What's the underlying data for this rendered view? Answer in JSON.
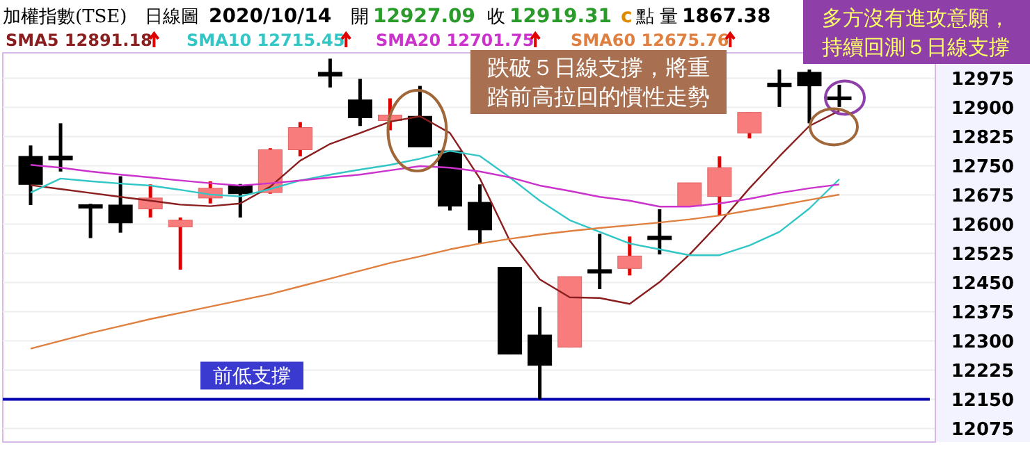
{
  "chart_data": {
    "type": "candlestick",
    "title": "加權指數(TSE)",
    "categories": [
      null,
      null,
      null,
      null,
      null,
      null,
      null,
      null,
      null,
      null,
      null,
      null,
      null,
      null,
      null,
      null,
      null,
      null,
      null,
      null,
      null,
      null,
      null,
      null,
      null,
      null,
      null,
      null
    ],
    "ohlc": [
      [
        12774,
        12802,
        12649,
        12702
      ],
      [
        12775,
        12859,
        12735,
        12765
      ],
      [
        12650,
        12652,
        12564,
        12641
      ],
      [
        12649,
        12723,
        12578,
        12603
      ],
      [
        12639,
        12702,
        12617,
        12667
      ],
      [
        12593,
        12617,
        12483,
        12610
      ],
      [
        12667,
        12710,
        12653,
        12692
      ],
      [
        12699,
        12703,
        12617,
        12678
      ],
      [
        12681,
        12795,
        12678,
        12791
      ],
      [
        12791,
        12862,
        12774,
        12848
      ],
      [
        12990,
        13025,
        12951,
        12980
      ],
      [
        12919,
        12973,
        12852,
        12873
      ],
      [
        12866,
        12923,
        12841,
        12880
      ],
      [
        12877,
        12955,
        12798,
        12798
      ],
      [
        12788,
        12788,
        12635,
        12646
      ],
      [
        12656,
        12702,
        12550,
        12585
      ],
      [
        12489,
        12489,
        12266,
        12266
      ],
      [
        12315,
        12387,
        12150,
        12237
      ],
      [
        12284,
        12465,
        12284,
        12465
      ],
      [
        12483,
        12575,
        12433,
        12474
      ],
      [
        12486,
        12568,
        12468,
        12518
      ],
      [
        12569,
        12638,
        12522,
        12560
      ],
      [
        12646,
        12706,
        12646,
        12706
      ],
      [
        12671,
        12774,
        12621,
        12745
      ],
      [
        12834,
        12887,
        12820,
        12887
      ],
      [
        12962,
        12997,
        12901,
        12953
      ],
      [
        12990,
        12997,
        12859,
        12955
      ],
      [
        12927.09,
        12958,
        12901,
        12919.31
      ]
    ],
    "series": [
      {
        "name": "SMA5 12891.18",
        "type": "line",
        "color": "#8b1e1e",
        "values": [
          12700,
          12690,
          12680,
          12670,
          12660,
          12650,
          12646,
          12653,
          12696,
          12763,
          12806,
          12834,
          12863,
          12877,
          12834,
          12717,
          12557,
          12458,
          12412,
          12410,
          12395,
          12451,
          12522,
          12603,
          12692,
          12774,
          12852,
          12891.18
        ]
      },
      {
        "name": "SMA10 12715.45",
        "type": "line",
        "color": "#33c6c6",
        "values": [
          12681,
          12717,
          12710,
          12704,
          12699,
          12688,
          12676,
          12671,
          12690,
          12712,
          12727,
          12740,
          12752,
          12768,
          12788,
          12775,
          12720,
          12660,
          12610,
          12580,
          12550,
          12535,
          12520,
          12520,
          12545,
          12580,
          12640,
          12715.45
        ]
      },
      {
        "name": "SMA20 12701.75",
        "type": "line",
        "color": "#cc33cc",
        "values": [
          12752,
          12745,
          12735,
          12727,
          12720,
          12712,
          12705,
          12699,
          12705,
          12712,
          12720,
          12727,
          12738,
          12749,
          12745,
          12735,
          12720,
          12699,
          12685,
          12670,
          12660,
          12645,
          12645,
          12653,
          12665,
          12680,
          12692,
          12701.75
        ]
      },
      {
        "name": "SMA60 12675.76",
        "type": "line",
        "color": "#e08040",
        "values": [
          12280,
          12300,
          12320,
          12338,
          12356,
          12372,
          12388,
          12404,
          12420,
          12440,
          12460,
          12480,
          12500,
          12517,
          12535,
          12550,
          12562,
          12573,
          12582,
          12590,
          12597,
          12604,
          12612,
          12622,
          12635,
          12648,
          12662,
          12675.76
        ]
      }
    ],
    "ylim": [
      12040,
      13040
    ],
    "yticks": [
      12075,
      12150,
      12225,
      12300,
      12375,
      12450,
      12525,
      12600,
      12675,
      12750,
      12825,
      12900,
      12975
    ],
    "grid": "y",
    "legend": "top left",
    "ref_lines": [
      {
        "axis": "y",
        "value": 12150,
        "label": "前低支撐",
        "color": "#0000b0"
      }
    ],
    "annotations": [
      "日線圖",
      "2020/10/14",
      "開",
      "12927.09",
      "收",
      "12919.31",
      "c",
      "點",
      "量",
      "1867.38",
      "跌破５日線支撐，將重踏前高拉回的慣性走勢",
      "多方沒有進攻意願，持續回測５日線支撐"
    ]
  }
}
